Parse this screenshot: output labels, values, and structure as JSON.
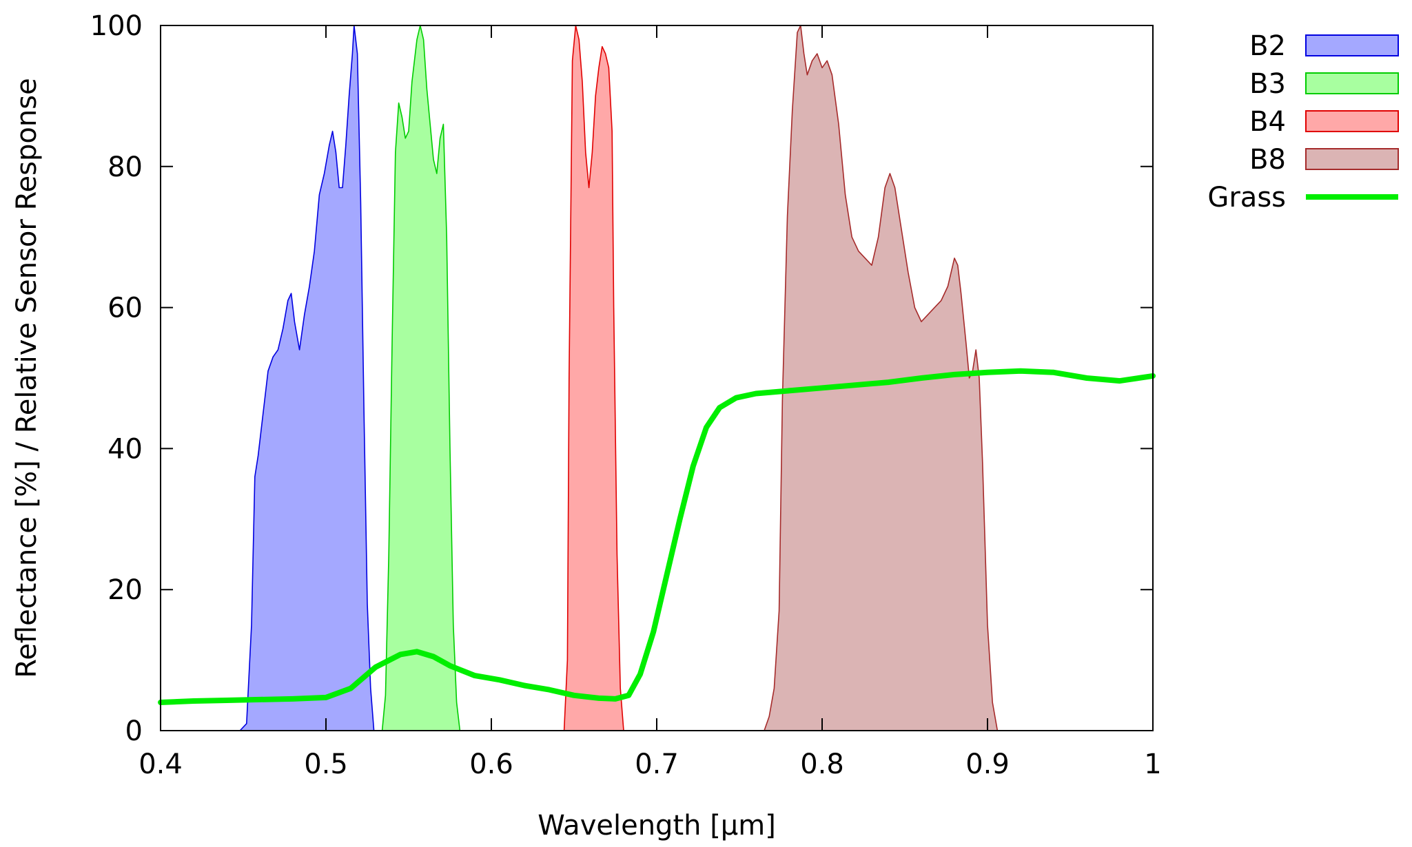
{
  "chart_data": {
    "type": "area",
    "title": "",
    "xlabel": "Wavelength [µm]",
    "ylabel": "Reflectance [%] / Relative Sensor Response",
    "xlim": [
      0.4,
      1.0
    ],
    "ylim": [
      0,
      100
    ],
    "x_ticks": [
      "0.4",
      "0.5",
      "0.6",
      "0.7",
      "0.8",
      "0.9",
      "1"
    ],
    "y_ticks": [
      "0",
      "20",
      "40",
      "60",
      "80",
      "100"
    ],
    "grid": false,
    "legend_placement": "outside-right",
    "series": [
      {
        "name": "B2",
        "style": "filled-area",
        "stroke": "#0000e0",
        "fill": "#a4a8ff",
        "points": [
          [
            0.44,
            0
          ],
          [
            0.448,
            0
          ],
          [
            0.452,
            1
          ],
          [
            0.455,
            15
          ],
          [
            0.457,
            36
          ],
          [
            0.459,
            39
          ],
          [
            0.462,
            45
          ],
          [
            0.465,
            51
          ],
          [
            0.468,
            53
          ],
          [
            0.471,
            54
          ],
          [
            0.474,
            57
          ],
          [
            0.477,
            61
          ],
          [
            0.479,
            62
          ],
          [
            0.481,
            58
          ],
          [
            0.484,
            54
          ],
          [
            0.487,
            59
          ],
          [
            0.49,
            63
          ],
          [
            0.493,
            68
          ],
          [
            0.496,
            76
          ],
          [
            0.499,
            79
          ],
          [
            0.502,
            83
          ],
          [
            0.504,
            85
          ],
          [
            0.506,
            82
          ],
          [
            0.508,
            77
          ],
          [
            0.51,
            77
          ],
          [
            0.512,
            83
          ],
          [
            0.514,
            90
          ],
          [
            0.516,
            96
          ],
          [
            0.517,
            100
          ],
          [
            0.519,
            96
          ],
          [
            0.521,
            75
          ],
          [
            0.523,
            45
          ],
          [
            0.525,
            18
          ],
          [
            0.527,
            6
          ],
          [
            0.529,
            0
          ]
        ]
      },
      {
        "name": "B3",
        "style": "filled-area",
        "stroke": "#00cc00",
        "fill": "#a8ffa0",
        "points": [
          [
            0.534,
            0
          ],
          [
            0.536,
            5
          ],
          [
            0.538,
            25
          ],
          [
            0.54,
            55
          ],
          [
            0.542,
            82
          ],
          [
            0.544,
            89
          ],
          [
            0.546,
            87
          ],
          [
            0.548,
            84
          ],
          [
            0.55,
            85
          ],
          [
            0.552,
            92
          ],
          [
            0.555,
            98
          ],
          [
            0.557,
            100
          ],
          [
            0.559,
            98
          ],
          [
            0.561,
            91
          ],
          [
            0.563,
            86
          ],
          [
            0.565,
            81
          ],
          [
            0.567,
            79
          ],
          [
            0.569,
            84
          ],
          [
            0.571,
            86
          ],
          [
            0.573,
            70
          ],
          [
            0.575,
            40
          ],
          [
            0.577,
            15
          ],
          [
            0.579,
            4
          ],
          [
            0.581,
            0
          ]
        ]
      },
      {
        "name": "B4",
        "style": "filled-area",
        "stroke": "#e00000",
        "fill": "#ffa8a8",
        "points": [
          [
            0.644,
            0
          ],
          [
            0.646,
            10
          ],
          [
            0.647,
            50
          ],
          [
            0.649,
            95
          ],
          [
            0.651,
            100
          ],
          [
            0.653,
            98
          ],
          [
            0.655,
            92
          ],
          [
            0.657,
            82
          ],
          [
            0.659,
            77
          ],
          [
            0.661,
            82
          ],
          [
            0.663,
            90
          ],
          [
            0.665,
            94
          ],
          [
            0.667,
            97
          ],
          [
            0.669,
            96
          ],
          [
            0.671,
            94
          ],
          [
            0.673,
            85
          ],
          [
            0.674,
            60
          ],
          [
            0.676,
            25
          ],
          [
            0.678,
            6
          ],
          [
            0.68,
            0
          ]
        ]
      },
      {
        "name": "B8",
        "style": "filled-area",
        "stroke": "#a52a2a",
        "fill": "#dbb4b4",
        "points": [
          [
            0.76,
            0
          ],
          [
            0.765,
            0
          ],
          [
            0.768,
            2
          ],
          [
            0.771,
            6
          ],
          [
            0.774,
            17
          ],
          [
            0.776,
            47
          ],
          [
            0.779,
            73
          ],
          [
            0.782,
            88
          ],
          [
            0.785,
            99
          ],
          [
            0.787,
            100
          ],
          [
            0.789,
            96
          ],
          [
            0.791,
            93
          ],
          [
            0.794,
            95
          ],
          [
            0.797,
            96
          ],
          [
            0.8,
            94
          ],
          [
            0.803,
            95
          ],
          [
            0.806,
            93
          ],
          [
            0.81,
            86
          ],
          [
            0.814,
            76
          ],
          [
            0.818,
            70
          ],
          [
            0.822,
            68
          ],
          [
            0.826,
            67
          ],
          [
            0.83,
            66
          ],
          [
            0.834,
            70
          ],
          [
            0.838,
            77
          ],
          [
            0.841,
            79
          ],
          [
            0.844,
            77
          ],
          [
            0.848,
            71
          ],
          [
            0.852,
            65
          ],
          [
            0.856,
            60
          ],
          [
            0.86,
            58
          ],
          [
            0.864,
            59
          ],
          [
            0.868,
            60
          ],
          [
            0.872,
            61
          ],
          [
            0.876,
            63
          ],
          [
            0.88,
            67
          ],
          [
            0.882,
            66
          ],
          [
            0.884,
            62
          ],
          [
            0.887,
            55
          ],
          [
            0.889,
            50
          ],
          [
            0.891,
            51
          ],
          [
            0.893,
            54
          ],
          [
            0.895,
            50
          ],
          [
            0.897,
            38
          ],
          [
            0.9,
            15
          ],
          [
            0.903,
            4
          ],
          [
            0.906,
            0
          ]
        ]
      },
      {
        "name": "Grass",
        "style": "line",
        "stroke": "#00ee00",
        "points": [
          [
            0.4,
            4.0
          ],
          [
            0.42,
            4.2
          ],
          [
            0.44,
            4.3
          ],
          [
            0.46,
            4.4
          ],
          [
            0.48,
            4.5
          ],
          [
            0.5,
            4.7
          ],
          [
            0.515,
            6.0
          ],
          [
            0.53,
            9.0
          ],
          [
            0.545,
            10.8
          ],
          [
            0.555,
            11.2
          ],
          [
            0.565,
            10.5
          ],
          [
            0.575,
            9.2
          ],
          [
            0.59,
            7.8
          ],
          [
            0.605,
            7.2
          ],
          [
            0.62,
            6.4
          ],
          [
            0.635,
            5.8
          ],
          [
            0.65,
            5.0
          ],
          [
            0.665,
            4.6
          ],
          [
            0.675,
            4.5
          ],
          [
            0.683,
            5.0
          ],
          [
            0.69,
            8.0
          ],
          [
            0.698,
            14.0
          ],
          [
            0.706,
            22.0
          ],
          [
            0.714,
            30.0
          ],
          [
            0.722,
            37.5
          ],
          [
            0.73,
            43.0
          ],
          [
            0.738,
            45.8
          ],
          [
            0.748,
            47.2
          ],
          [
            0.76,
            47.8
          ],
          [
            0.78,
            48.2
          ],
          [
            0.8,
            48.6
          ],
          [
            0.82,
            49.0
          ],
          [
            0.84,
            49.4
          ],
          [
            0.86,
            50.0
          ],
          [
            0.88,
            50.5
          ],
          [
            0.9,
            50.8
          ],
          [
            0.92,
            51.0
          ],
          [
            0.94,
            50.8
          ],
          [
            0.96,
            50.0
          ],
          [
            0.98,
            49.6
          ],
          [
            1.0,
            50.3
          ]
        ]
      }
    ]
  }
}
